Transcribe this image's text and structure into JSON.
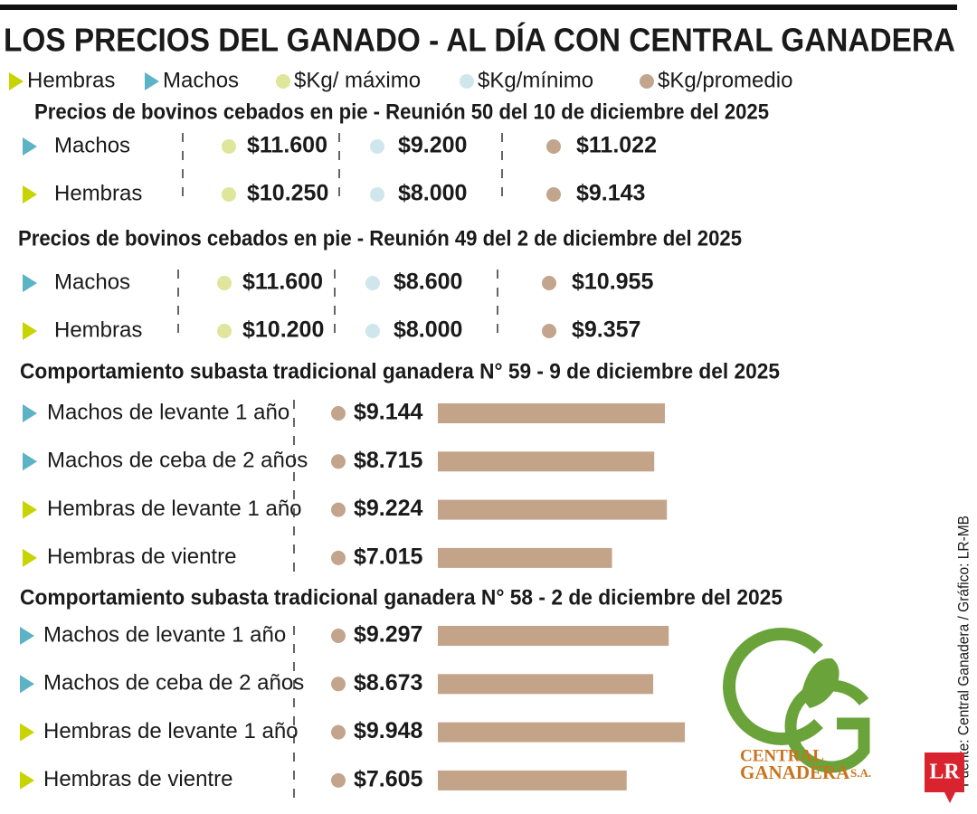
{
  "header": {
    "title": "LOS PRECIOS DEL GANADO - AL DÍA CON CENTRAL GANADERA"
  },
  "legend": [
    {
      "label": "Hembras",
      "color": "#c8d400",
      "shape": "triangle"
    },
    {
      "label": "Machos",
      "color": "#5bb3c5",
      "shape": "triangle"
    },
    {
      "label": "$Kg/ máximo",
      "color": "#dfe59a",
      "shape": "dot"
    },
    {
      "label": "$Kg/mínimo",
      "color": "#cfe6ec",
      "shape": "dot"
    },
    {
      "label": "$Kg/promedio",
      "color": "#c3a48c",
      "shape": "dot"
    }
  ],
  "price_tables": [
    {
      "title": "Precios de bovinos cebados en pie - Reunión 50 del 10 de diciembre del 2025",
      "rows": [
        {
          "label": "Machos",
          "color": "#5bb3c5",
          "max": "$11.600",
          "min": "$9.200",
          "avg": "$11.022"
        },
        {
          "label": "Hembras",
          "color": "#c8d400",
          "max": "$10.250",
          "min": "$8.000",
          "avg": "$9.143"
        }
      ]
    },
    {
      "title": "Precios de bovinos cebados en pie - Reunión 49 del 2 de diciembre del 2025",
      "rows": [
        {
          "label": "Machos",
          "color": "#5bb3c5",
          "max": "$11.600",
          "min": "$8.600",
          "avg": "$10.955"
        },
        {
          "label": "Hembras",
          "color": "#c8d400",
          "max": "$10.200",
          "min": "$8.000",
          "avg": "$9.357"
        }
      ]
    }
  ],
  "auctions": [
    {
      "title": "Comportamiento subasta tradicional ganadera N° 59 - 9 de diciembre del 2025",
      "rows": [
        {
          "label": "Machos de levante 1 año",
          "color": "#5bb3c5",
          "value": 9144,
          "value_label": "$9.144"
        },
        {
          "label": "Machos de ceba de 2 años",
          "color": "#5bb3c5",
          "value": 8715,
          "value_label": "$8.715"
        },
        {
          "label": "Hembras de levante 1 año",
          "color": "#c8d400",
          "value": 9224,
          "value_label": "$9.224"
        },
        {
          "label": "Hembras de vientre",
          "color": "#c8d400",
          "value": 7015,
          "value_label": "$7.015"
        }
      ]
    },
    {
      "title": "Comportamiento subasta tradicional ganadera N° 58 - 2 de diciembre del 2025",
      "rows": [
        {
          "label": "Machos de levante 1 año",
          "color": "#5bb3c5",
          "value": 9297,
          "value_label": "$9.297"
        },
        {
          "label": "Machos de ceba de 2 años",
          "color": "#5bb3c5",
          "value": 8673,
          "value_label": "$8.673"
        },
        {
          "label": "Hembras de levante 1 año",
          "color": "#c8d400",
          "value": 9948,
          "value_label": "$9.948"
        },
        {
          "label": "Hembras de vientre",
          "color": "#c8d400",
          "value": 7605,
          "value_label": "$7.605"
        }
      ]
    }
  ],
  "bar_color": "#c4a489",
  "source": "Fuente: Central Ganadera / Gráfico: LR-MB",
  "logo": {
    "line1": "CENTRAL",
    "line2": "GANADERA",
    "suffix": "S.A."
  },
  "brand": "LR"
}
